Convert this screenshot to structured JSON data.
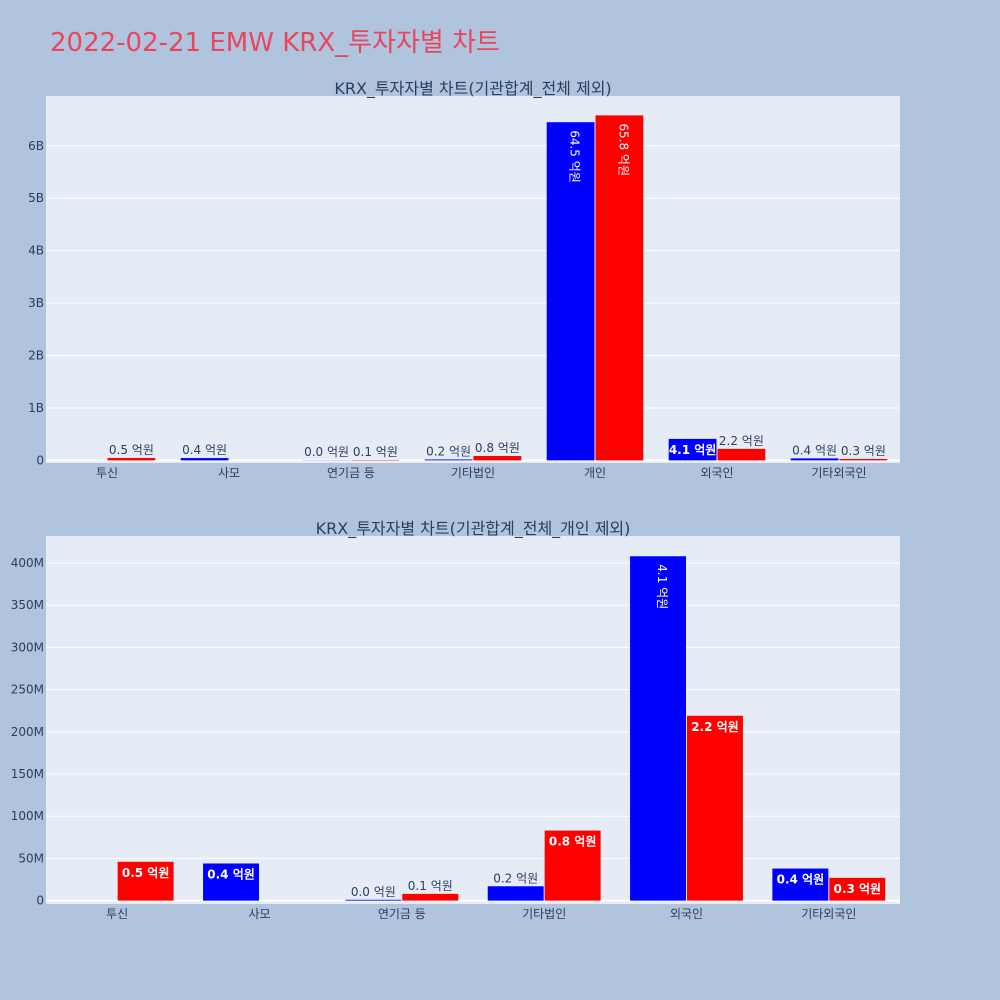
{
  "page_title": "2022-02-21 EMW KRX_투자자별 차트",
  "colors": {
    "background": "#b0c4de",
    "plot_bg": "#e5ecf6",
    "title": "#e8465f",
    "series_a": "#0000ff",
    "series_b": "#ff0000"
  },
  "chart_data": [
    {
      "type": "bar",
      "title": "KRX_투자자별 차트(기관합계_전체 제외)",
      "categories": [
        "투신",
        "사모",
        "연기금 등",
        "기타법인",
        "개인",
        "외국인",
        "기타외국인"
      ],
      "series": [
        {
          "values": [
            0,
            44000000,
            3000000,
            17000000,
            6450000000,
            410000000,
            38000000
          ],
          "labels": [
            "",
            "0.4 억원",
            "0.0 억원",
            "0.2 억원",
            "64.5 억원",
            "4.1 억원",
            "0.4 억원"
          ],
          "color": "#0000ff"
        },
        {
          "values": [
            46000000,
            0,
            8000000,
            83000000,
            6580000000,
            220000000,
            27000000
          ],
          "labels": [
            "0.5 억원",
            "",
            "0.1 억원",
            "0.8 억원",
            "65.8 억원",
            "2.2 억원",
            "0.3 억원"
          ],
          "color": "#ff0000"
        }
      ],
      "yticks": [
        "0",
        "1B",
        "2B",
        "3B",
        "4B",
        "5B",
        "6B"
      ],
      "ytick_values": [
        0,
        1000000000,
        2000000000,
        3000000000,
        4000000000,
        5000000000,
        6000000000
      ],
      "ylim": [
        -50000000,
        6950000000
      ],
      "grid": true
    },
    {
      "type": "bar",
      "title": "KRX_투자자별 차트(기관합계_전체_개인 제외)",
      "categories": [
        "투신",
        "사모",
        "연기금 등",
        "기타법인",
        "외국인",
        "기타외국인"
      ],
      "series": [
        {
          "values": [
            0,
            44000000,
            1000000,
            17000000,
            408000000,
            38000000
          ],
          "labels": [
            "",
            "0.4 억원",
            "0.0 억원",
            "0.2 억원",
            "4.1 억원",
            "0.4 억원"
          ],
          "color": "#0000ff"
        },
        {
          "values": [
            46000000,
            0,
            8000000,
            83000000,
            219000000,
            27000000
          ],
          "labels": [
            "0.5 억원",
            "",
            "0.1 억원",
            "0.8 억원",
            "2.2 억원",
            "0.3 억원"
          ],
          "color": "#ff0000"
        }
      ],
      "yticks": [
        "0",
        "50M",
        "100M",
        "150M",
        "200M",
        "250M",
        "300M",
        "350M",
        "400M"
      ],
      "ytick_values": [
        0,
        50000000,
        100000000,
        150000000,
        200000000,
        250000000,
        300000000,
        350000000,
        400000000
      ],
      "ylim": [
        -4000000,
        432000000
      ],
      "grid": true
    }
  ]
}
